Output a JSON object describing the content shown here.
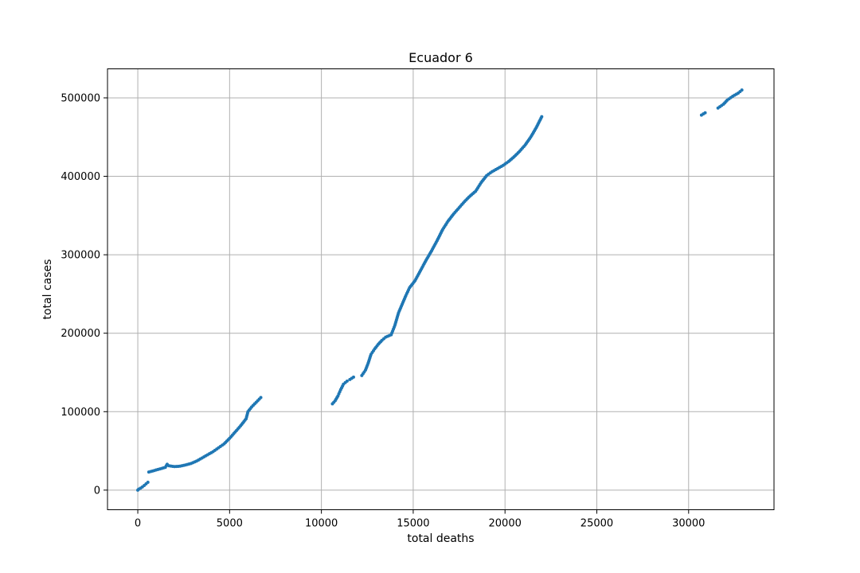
{
  "chart_data": {
    "type": "scatter",
    "title": "Ecuador 6",
    "xlabel": "total deaths",
    "ylabel": "total cases",
    "xlim": [
      -1650,
      34650
    ],
    "ylim": [
      -25000,
      537000
    ],
    "xticks": [
      0,
      5000,
      10000,
      15000,
      20000,
      25000,
      30000
    ],
    "yticks": [
      0,
      100000,
      200000,
      300000,
      400000,
      500000
    ],
    "grid": true,
    "marker_color": "#1f77b4",
    "series": [
      {
        "segments": [
          [
            [
              0,
              0
            ],
            [
              50,
              1200
            ],
            [
              150,
              2500
            ],
            [
              250,
              4000
            ],
            [
              350,
              6000
            ],
            [
              450,
              8000
            ],
            [
              550,
              10000
            ]
          ],
          [
            [
              600,
              23000
            ],
            [
              900,
              25000
            ],
            [
              1200,
              27000
            ],
            [
              1500,
              29000
            ],
            [
              1600,
              33000
            ],
            [
              1700,
              31000
            ],
            [
              2000,
              30000
            ],
            [
              2300,
              30500
            ],
            [
              2600,
              32000
            ],
            [
              2900,
              34000
            ],
            [
              3200,
              37000
            ],
            [
              3500,
              41000
            ],
            [
              3800,
              45000
            ],
            [
              4100,
              49000
            ],
            [
              4400,
              54000
            ],
            [
              4700,
              59000
            ],
            [
              5000,
              66000
            ],
            [
              5300,
              74000
            ],
            [
              5600,
              82000
            ],
            [
              5900,
              91000
            ],
            [
              6000,
              100000
            ],
            [
              6200,
              106000
            ],
            [
              6450,
              112000
            ],
            [
              6700,
              118000
            ]
          ],
          [
            [
              10600,
              110000
            ],
            [
              10750,
              114000
            ],
            [
              10900,
              120000
            ],
            [
              11050,
              128000
            ],
            [
              11200,
              135000
            ],
            [
              11400,
              139000
            ],
            [
              11550,
              141000
            ],
            [
              11750,
              144000
            ]
          ],
          [
            [
              12200,
              146000
            ],
            [
              12400,
              153000
            ],
            [
              12550,
              162000
            ],
            [
              12700,
              173000
            ],
            [
              12900,
              180000
            ],
            [
              13100,
              186000
            ],
            [
              13300,
              191000
            ],
            [
              13500,
              195000
            ],
            [
              13800,
              198000
            ],
            [
              14000,
              210000
            ],
            [
              14200,
              226000
            ],
            [
              14400,
              237000
            ],
            [
              14600,
              248000
            ],
            [
              14800,
              258000
            ],
            [
              15100,
              267000
            ],
            [
              15400,
              280000
            ],
            [
              15700,
              293000
            ],
            [
              16000,
              305000
            ],
            [
              16300,
              318000
            ],
            [
              16600,
              332000
            ],
            [
              16900,
              343000
            ],
            [
              17200,
              352000
            ],
            [
              17500,
              360000
            ],
            [
              17800,
              368000
            ],
            [
              18100,
              375000
            ],
            [
              18400,
              381000
            ],
            [
              18700,
              392000
            ],
            [
              19000,
              401000
            ],
            [
              19300,
              406000
            ],
            [
              19600,
              410000
            ],
            [
              19900,
              414000
            ],
            [
              20200,
              419000
            ],
            [
              20500,
              425000
            ],
            [
              20800,
              432000
            ],
            [
              21100,
              440000
            ],
            [
              21400,
              450000
            ],
            [
              21700,
              462000
            ],
            [
              22000,
              476000
            ]
          ],
          [
            [
              30700,
              478000
            ],
            [
              30900,
              481000
            ]
          ],
          [
            [
              31600,
              487000
            ],
            [
              31900,
              492000
            ],
            [
              32100,
              497000
            ],
            [
              32400,
              502000
            ],
            [
              32700,
              506000
            ],
            [
              32900,
              510000
            ]
          ]
        ]
      }
    ]
  }
}
